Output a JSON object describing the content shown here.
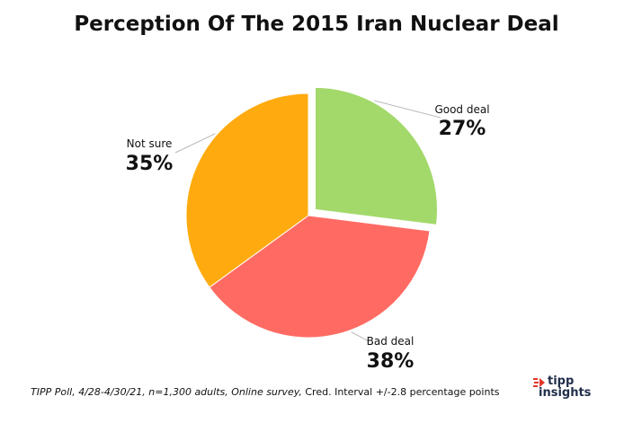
{
  "chart_data": {
    "type": "pie",
    "title": "Perception Of The 2015 Iran Nuclear Deal",
    "slices": [
      {
        "label": "Good deal",
        "value": 27,
        "display": "27%",
        "color": "#a3d96b",
        "exploded": true
      },
      {
        "label": "Bad deal",
        "value": 38,
        "display": "38%",
        "color": "#ff6b63",
        "exploded": false
      },
      {
        "label": "Not sure",
        "value": 35,
        "display": "35%",
        "color": "#ffab0f",
        "exploded": false
      }
    ],
    "start": "12 o'clock",
    "direction": "clockwise"
  },
  "footnote": {
    "italic": "TIPP Poll, 4/28-4/30/21, n=1,300 adults, Online survey,",
    "plain": "Cred. Interval +/-2.8 percentage points"
  },
  "logo": {
    "line1": "tipp",
    "line2": "insights",
    "colors": {
      "navy": "#1f2d4a",
      "red": "#e5352b"
    }
  }
}
